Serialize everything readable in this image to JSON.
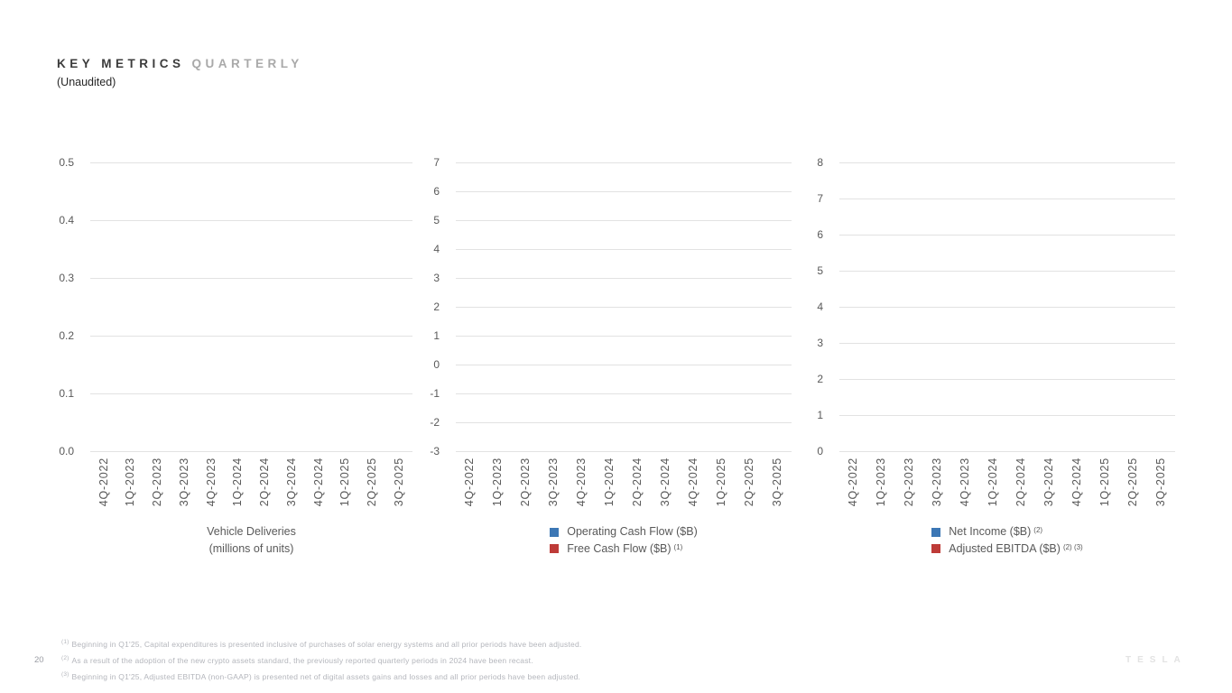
{
  "slide": {
    "title_primary": "KEY METRICS",
    "title_secondary": "QUARTERLY",
    "subtitle": "(Unaudited)",
    "page_number": "20",
    "brand_wordmark": "TESLA"
  },
  "colors": {
    "accent_blue": "#3C77B5",
    "accent_red": "#BE3B38",
    "gridline": "#E2E2E2",
    "axis_text": "#595959",
    "footnote_text": "#B4B6BC"
  },
  "chart_data": [
    {
      "id": "vehicle-deliveries",
      "type": "bar",
      "categories": [
        "4Q-2022",
        "1Q-2023",
        "2Q-2023",
        "3Q-2023",
        "4Q-2023",
        "1Q-2024",
        "2Q-2024",
        "3Q-2024",
        "4Q-2024",
        "1Q-2025",
        "2Q-2025",
        "3Q-2025"
      ],
      "series": [],
      "data_rendered": false,
      "y_ticks": [
        "0.5",
        "0.4",
        "0.3",
        "0.2",
        "0.1",
        "0.0"
      ],
      "ylim": [
        0.0,
        0.5
      ],
      "grid": true,
      "legend_position": "bottom",
      "legend": [
        {
          "swatch": null,
          "label": "Vehicle Deliveries",
          "sup": ""
        },
        {
          "swatch": null,
          "label": "(millions of units)",
          "sup": ""
        }
      ]
    },
    {
      "id": "cash-flow",
      "type": "bar",
      "categories": [
        "4Q-2022",
        "1Q-2023",
        "2Q-2023",
        "3Q-2023",
        "4Q-2023",
        "1Q-2024",
        "2Q-2024",
        "3Q-2024",
        "4Q-2024",
        "1Q-2025",
        "2Q-2025",
        "3Q-2025"
      ],
      "series": [],
      "data_rendered": false,
      "y_ticks": [
        "7",
        "6",
        "5",
        "4",
        "3",
        "2",
        "1",
        "0",
        "-1",
        "-2",
        "-3"
      ],
      "ylim": [
        -3,
        7
      ],
      "grid": true,
      "legend_position": "bottom",
      "legend": [
        {
          "swatch": "#3C77B5",
          "label": "Operating Cash Flow ($B)",
          "sup": ""
        },
        {
          "swatch": "#BE3B38",
          "label": "Free Cash Flow ($B)",
          "sup": "(1)"
        }
      ]
    },
    {
      "id": "net-income-ebitda",
      "type": "bar",
      "categories": [
        "4Q-2022",
        "1Q-2023",
        "2Q-2023",
        "3Q-2023",
        "4Q-2023",
        "1Q-2024",
        "2Q-2024",
        "3Q-2024",
        "4Q-2024",
        "1Q-2025",
        "2Q-2025",
        "3Q-2025"
      ],
      "series": [],
      "data_rendered": false,
      "y_ticks": [
        "8",
        "7",
        "6",
        "5",
        "4",
        "3",
        "2",
        "1",
        "0"
      ],
      "ylim": [
        0,
        8
      ],
      "grid": true,
      "legend_position": "bottom",
      "legend": [
        {
          "swatch": "#3C77B5",
          "label": "Net Income ($B)",
          "sup": "(2)"
        },
        {
          "swatch": "#BE3B38",
          "label": "Adjusted EBITDA ($B)",
          "sup": "(2) (3)"
        }
      ]
    }
  ],
  "footnotes": [
    {
      "sup": "(1)",
      "text": "Beginning in Q1'25, Capital expenditures is presented inclusive of purchases of solar energy systems and all prior periods have been adjusted."
    },
    {
      "sup": "(2)",
      "text": "As a result of the adoption of the new crypto assets standard, the previously reported quarterly periods in 2024 have been recast."
    },
    {
      "sup": "(3)",
      "text": "Beginning in Q1'25, Adjusted EBITDA (non-GAAP) is presented net of digital assets gains and losses and all prior periods have been adjusted."
    }
  ]
}
